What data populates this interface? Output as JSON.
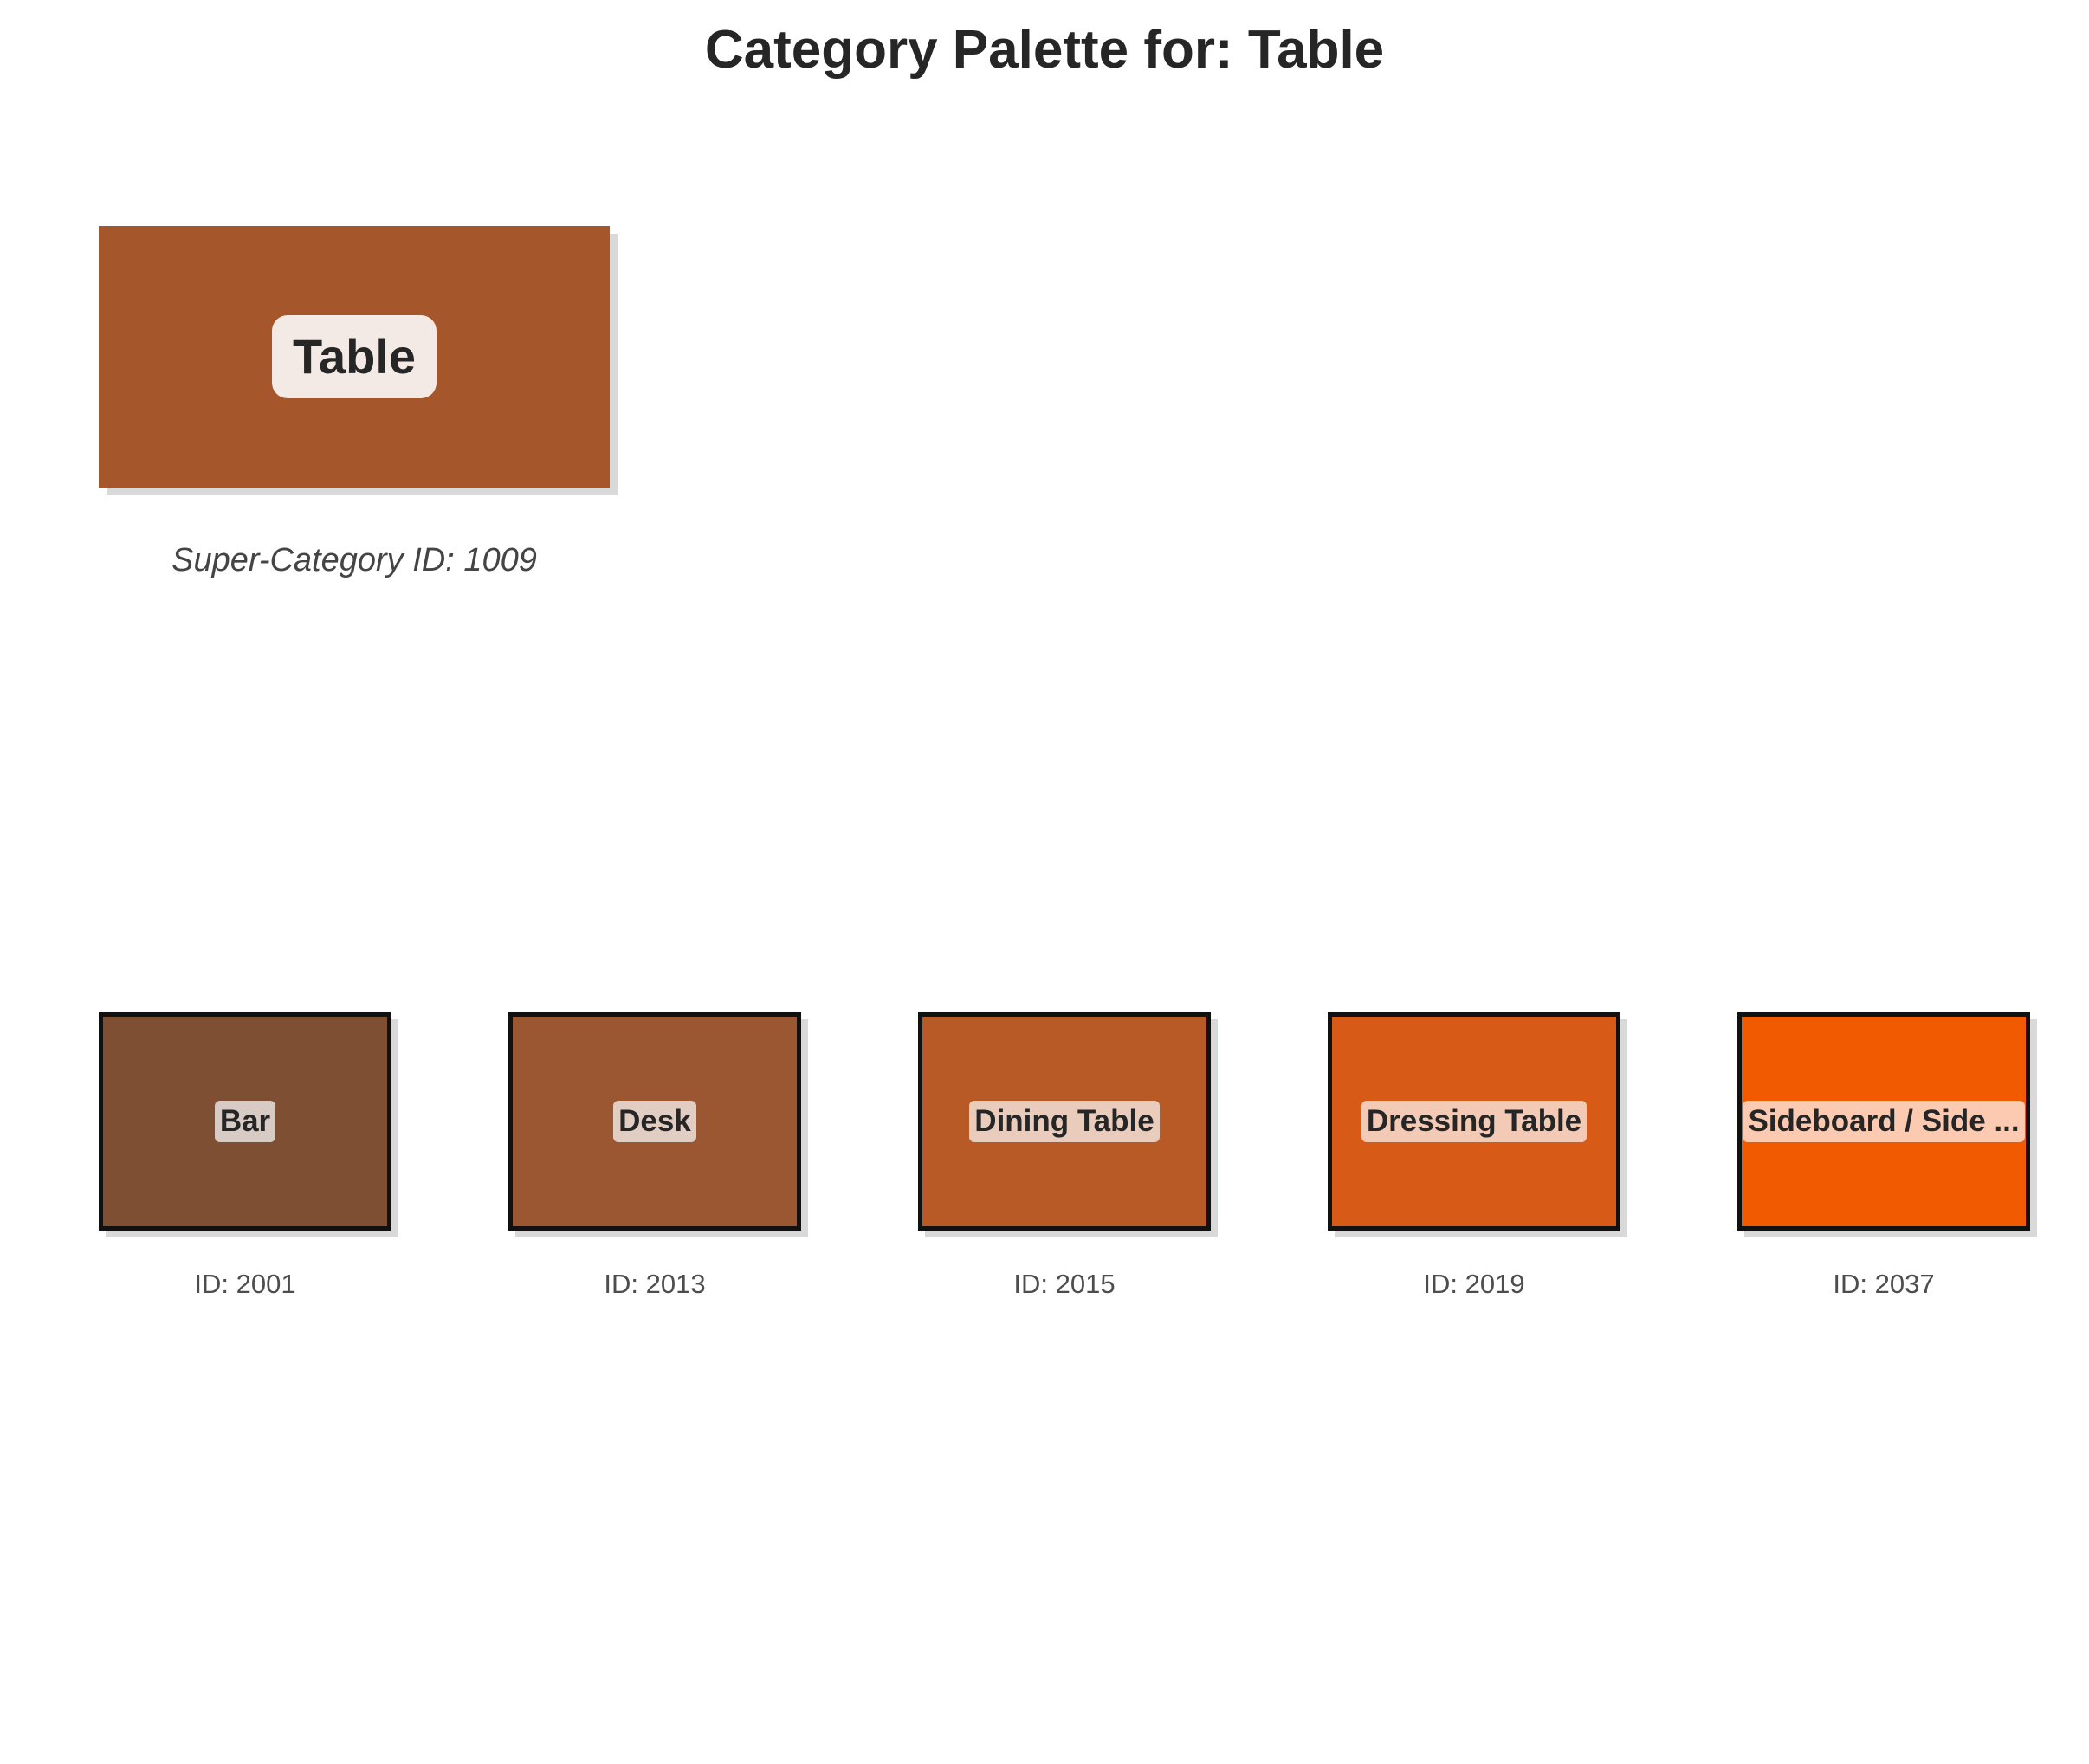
{
  "title": "Category Palette for: Table",
  "super_category": {
    "name": "Table",
    "caption": "Super-Category ID: 1009",
    "color": "#a5562a"
  },
  "subcategories": [
    {
      "name": "Bar",
      "id_label": "ID: 2001",
      "color": "#7f4f33",
      "label_bg": "#d8cbc3"
    },
    {
      "name": "Desk",
      "id_label": "ID: 2013",
      "color": "#9a5731",
      "label_bg": "#e1cdc1"
    },
    {
      "name": "Dining Table",
      "id_label": "ID: 2015",
      "color": "#b85a26",
      "label_bg": "#eaccbd"
    },
    {
      "name": "Dressing Table",
      "id_label": "ID: 2019",
      "color": "#d75b17",
      "label_bg": "#f2cab5"
    },
    {
      "name": "Sideboard / Side ...",
      "id_label": "ID: 2037",
      "color": "#f25a00",
      "label_bg": "#fbcab1"
    }
  ]
}
